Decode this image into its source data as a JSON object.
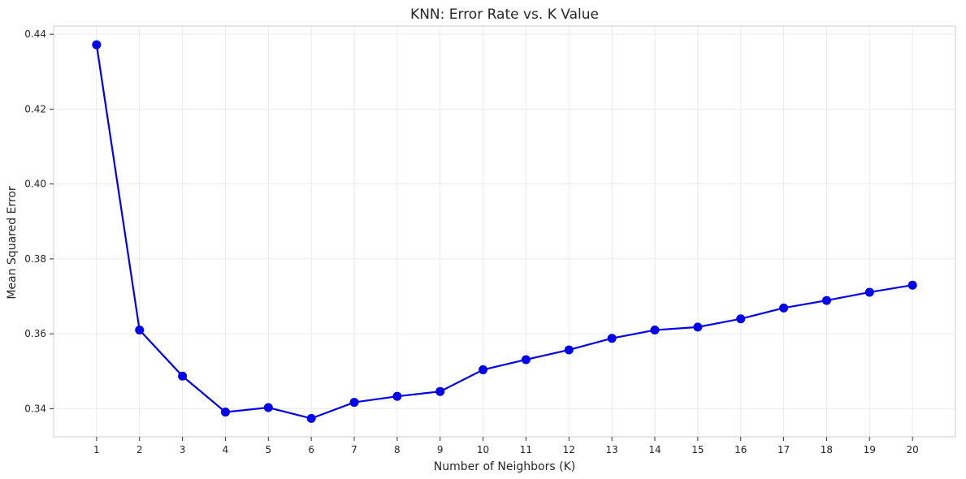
{
  "chart_data": {
    "type": "line",
    "title": "KNN: Error Rate vs. K Value",
    "xlabel": "Number of Neighbors (K)",
    "ylabel": "Mean Squared Error",
    "x": [
      1,
      2,
      3,
      4,
      5,
      6,
      7,
      8,
      9,
      10,
      11,
      12,
      13,
      14,
      15,
      16,
      17,
      18,
      19,
      20
    ],
    "x_tick_labels": [
      "1",
      "2",
      "3",
      "4",
      "5",
      "6",
      "7",
      "8",
      "9",
      "10",
      "11",
      "12",
      "13",
      "14",
      "15",
      "16",
      "17",
      "18",
      "19",
      "20"
    ],
    "series": [
      {
        "values": [
          0.4372,
          0.361,
          0.3487,
          0.3391,
          0.3403,
          0.3374,
          0.3417,
          0.3433,
          0.3446,
          0.3504,
          0.3531,
          0.3557,
          0.3588,
          0.361,
          0.3618,
          0.364,
          0.3669,
          0.3689,
          0.3711,
          0.373
        ],
        "color": "#0000ee",
        "marker": "circle"
      }
    ],
    "y_ticks": [
      0.34,
      0.36,
      0.38,
      0.4,
      0.42,
      0.44
    ],
    "y_tick_labels": [
      "0.34",
      "0.36",
      "0.38",
      "0.40",
      "0.42",
      "0.44"
    ],
    "xlim": [
      0.0,
      21.0
    ],
    "ylim": [
      0.3325,
      0.4422
    ],
    "grid": true,
    "legend": "none"
  }
}
